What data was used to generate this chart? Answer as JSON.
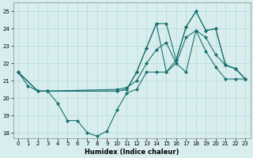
{
  "xlabel": "Humidex (Indice chaleur)",
  "background_color": "#d8eeee",
  "grid_color": "#b8d8d8",
  "line_color": "#1a7070",
  "xlim": [
    -0.5,
    23.5
  ],
  "ylim": [
    17.7,
    25.5
  ],
  "yticks": [
    18,
    19,
    20,
    21,
    22,
    23,
    24,
    25
  ],
  "xticks": [
    0,
    1,
    2,
    3,
    4,
    5,
    6,
    7,
    8,
    9,
    10,
    11,
    12,
    13,
    14,
    15,
    16,
    17,
    18,
    19,
    20,
    21,
    22,
    23
  ],
  "series": {
    "line1_x": [
      0,
      1,
      2,
      3,
      4,
      5,
      6,
      7,
      8,
      9,
      10,
      11,
      12,
      13,
      14,
      15,
      16,
      17,
      18,
      19,
      20,
      21,
      22,
      23
    ],
    "line1_y": [
      21.5,
      20.7,
      20.4,
      20.4,
      19.7,
      18.7,
      18.7,
      18.0,
      17.8,
      18.1,
      19.3,
      20.3,
      20.5,
      21.5,
      21.5,
      21.5,
      22.0,
      21.5,
      23.9,
      22.7,
      21.8,
      21.1,
      21.1,
      21.1
    ],
    "line2_x": [
      0,
      2,
      3,
      10,
      11,
      12,
      13,
      14,
      15,
      16,
      17,
      18,
      19,
      20,
      21,
      22,
      23
    ],
    "line2_y": [
      21.5,
      20.4,
      20.4,
      20.5,
      20.6,
      21.0,
      22.0,
      22.8,
      23.2,
      22.0,
      23.5,
      23.9,
      23.5,
      22.5,
      21.9,
      21.7,
      21.1
    ],
    "line3_x": [
      0,
      2,
      3,
      10,
      11,
      12,
      13,
      14,
      15,
      16,
      17,
      18,
      19,
      20,
      21,
      22,
      23
    ],
    "line3_y": [
      21.5,
      20.4,
      20.4,
      20.4,
      20.5,
      21.5,
      22.9,
      24.3,
      24.3,
      22.2,
      24.1,
      25.0,
      23.9,
      24.0,
      21.9,
      21.7,
      21.1
    ],
    "line4_x": [
      0,
      2,
      3,
      10,
      11,
      12,
      13,
      14,
      15,
      16,
      17,
      18,
      19,
      20,
      21,
      22,
      23
    ],
    "line4_y": [
      21.5,
      20.4,
      20.4,
      20.4,
      20.5,
      21.5,
      22.9,
      24.3,
      21.5,
      22.2,
      24.1,
      25.0,
      23.9,
      24.0,
      21.9,
      21.7,
      21.1
    ]
  }
}
